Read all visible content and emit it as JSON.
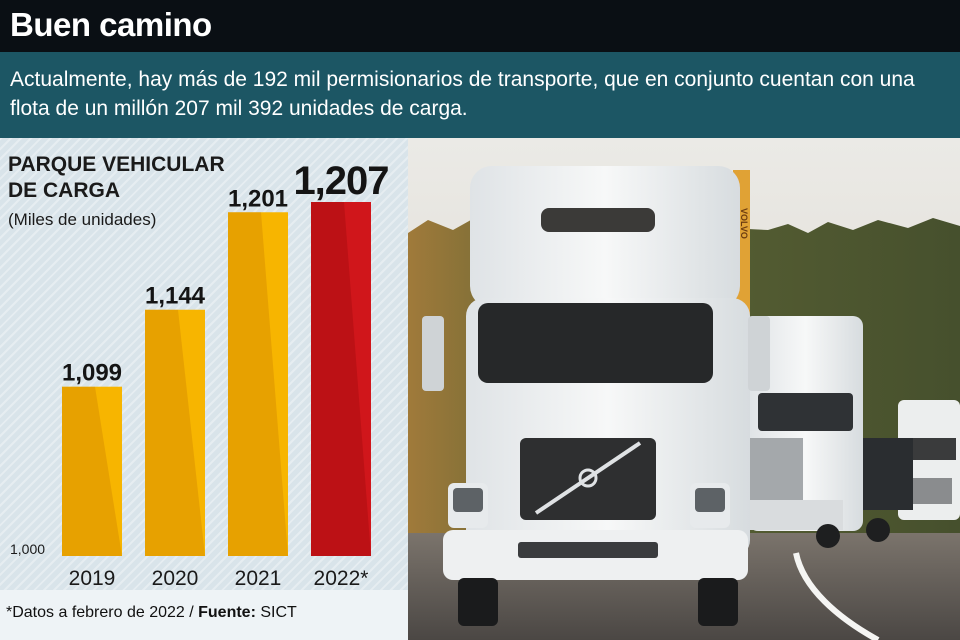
{
  "header": {
    "title": "Buen camino"
  },
  "subtitle": "Actualmente, hay más de 192 mil permisionarios de transporte, que en conjunto cuentan con una flota de un millón 207 mil 392 unidades de carga.",
  "chart_data": {
    "type": "bar",
    "title": "PARQUE VEHICULAR DE CARGA",
    "subtitle": "(Miles de unidades)",
    "categories": [
      "2019",
      "2020",
      "2021",
      "2022*"
    ],
    "values": [
      1099,
      1144,
      1201,
      1207
    ],
    "value_labels": [
      "1,099",
      "1,144",
      "1,201",
      "1,207"
    ],
    "baseline_label": "1,000",
    "ylim": [
      1000,
      1207
    ],
    "colors": [
      "#f7b500",
      "#f7b500",
      "#f7b500",
      "#d0161b"
    ],
    "highlight_index": 3
  },
  "footer": {
    "note": "*Datos a febrero de 2022 / ",
    "source_label": "Fuente:",
    "source": " SICT"
  },
  "photo": {
    "badge": "VOLVO",
    "colors": {
      "sky": "#e7e6e2",
      "trees": "#5f6a3c",
      "road": "#5e5a56",
      "truck": "#f2f3f2"
    }
  }
}
